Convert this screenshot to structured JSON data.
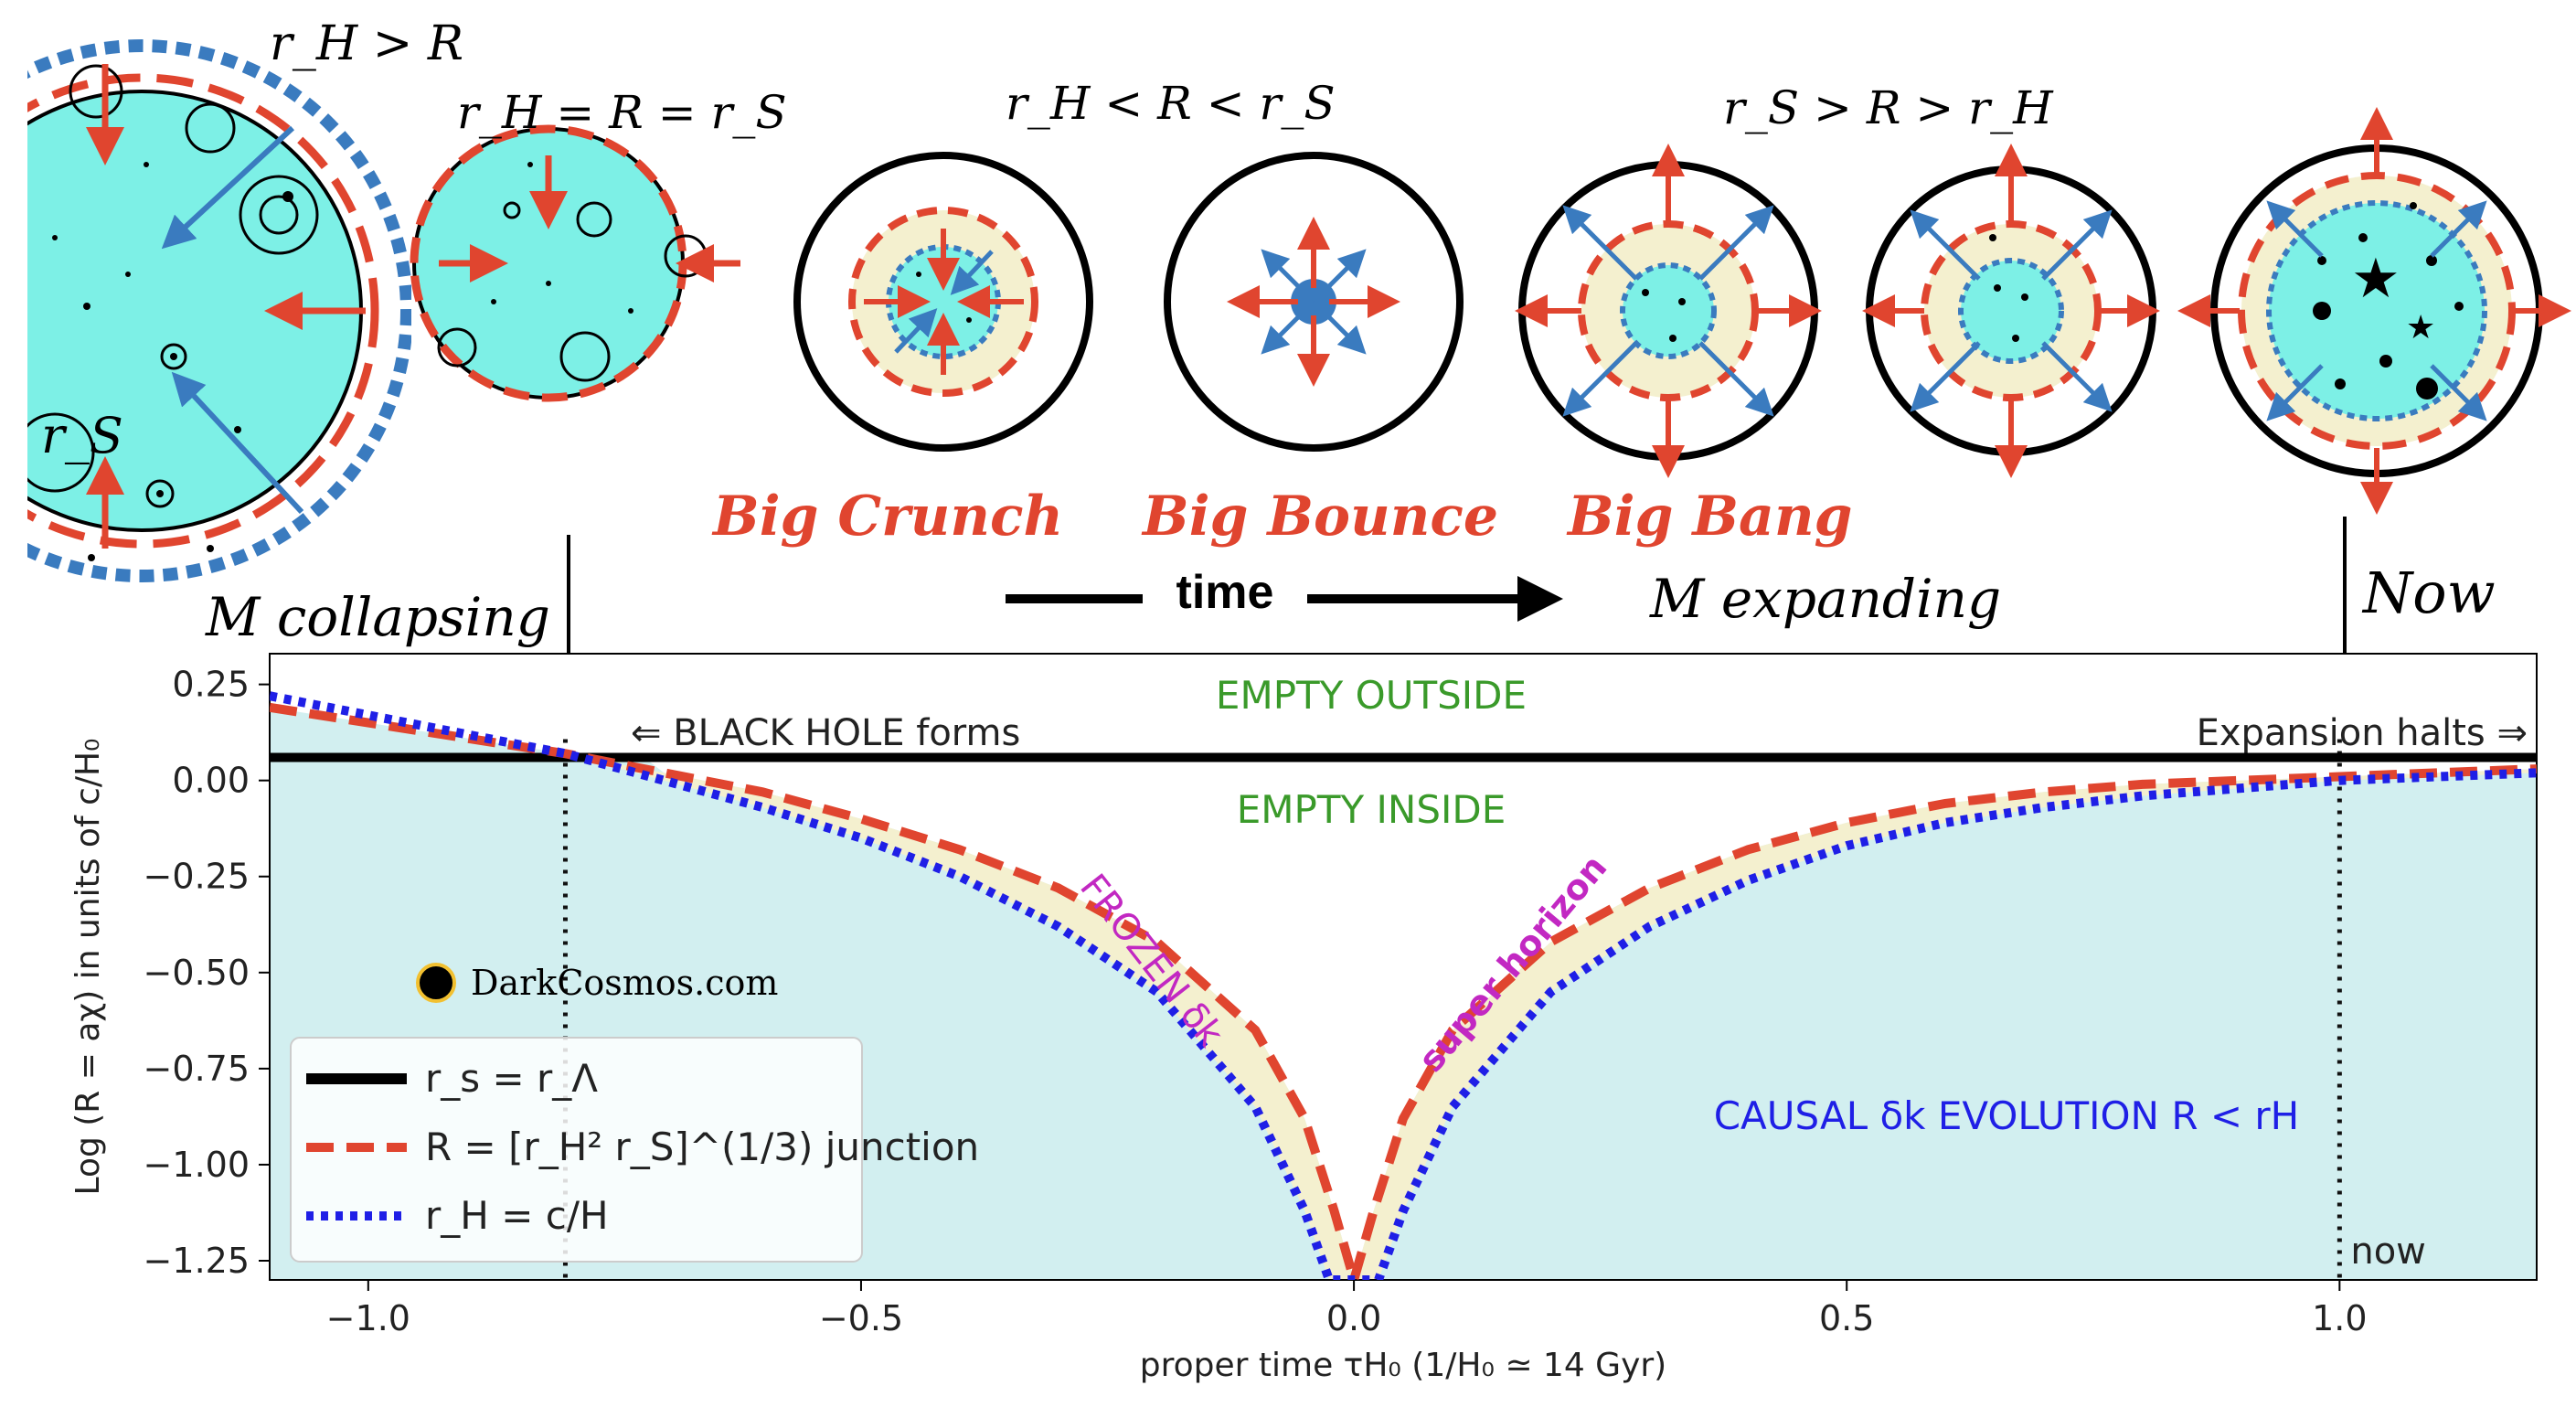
{
  "page": {
    "stage_labels": [
      "r_H > R",
      "r_H = R = r_S",
      "r_H < R < r_S",
      "r_S > R > r_H"
    ],
    "event_labels": [
      "Big Crunch",
      "Big Bounce",
      "Big Bang"
    ],
    "time_label": "time",
    "m_collapsing": "M collapsing",
    "m_expanding": "M expanding",
    "now_label": "Now",
    "rs_label": "r_S",
    "watermark": "DarkCosmos.com"
  },
  "chart_data": {
    "type": "line",
    "xlabel": "proper time τH₀ (1/H₀ ≃ 14 Gyr)",
    "ylabel": "Log (R = aχ) in units of c/H₀",
    "xlim": [
      -1.1,
      1.2
    ],
    "ylim": [
      -1.3,
      0.33
    ],
    "xticks": [
      -1.0,
      -0.5,
      0.0,
      0.5,
      1.0
    ],
    "xtick_labels": [
      "−1.0",
      "−0.5",
      "0.0",
      "0.5",
      "1.0"
    ],
    "yticks": [
      0.25,
      0.0,
      -0.25,
      -0.5,
      -0.75,
      -1.0,
      -1.25
    ],
    "ytick_labels": [
      "0.25",
      "0.00",
      "−0.25",
      "−0.50",
      "−0.75",
      "−1.00",
      "−1.25"
    ],
    "grid": false,
    "legend_placement": "lower-left",
    "series": [
      {
        "name": "r_s = r_Λ",
        "style": "solid",
        "color": "#000000",
        "x": [
          -1.1,
          1.2
        ],
        "y": [
          0.06,
          0.06
        ]
      },
      {
        "name": "R = [r_H² r_S]^(1/3) junction",
        "style": "dashed",
        "color": "#e0452f",
        "x": [
          -1.1,
          -1.0,
          -0.9,
          -0.8,
          -0.7,
          -0.6,
          -0.5,
          -0.4,
          -0.3,
          -0.2,
          -0.1,
          -0.05,
          -0.02,
          0.0,
          0.02,
          0.05,
          0.1,
          0.2,
          0.3,
          0.4,
          0.5,
          0.6,
          0.7,
          0.8,
          0.9,
          1.0,
          1.1,
          1.2
        ],
        "y": [
          0.19,
          0.15,
          0.11,
          0.07,
          0.02,
          -0.03,
          -0.1,
          -0.18,
          -0.28,
          -0.42,
          -0.65,
          -0.88,
          -1.12,
          -1.3,
          -1.12,
          -0.88,
          -0.65,
          -0.42,
          -0.28,
          -0.18,
          -0.11,
          -0.06,
          -0.03,
          -0.01,
          0.0,
          0.01,
          0.02,
          0.03
        ]
      },
      {
        "name": "r_H = c/H",
        "style": "dotted",
        "color": "#1f1fe6",
        "x": [
          -1.1,
          -1.0,
          -0.9,
          -0.8,
          -0.7,
          -0.6,
          -0.5,
          -0.4,
          -0.3,
          -0.2,
          -0.1,
          -0.05,
          -0.025,
          0.0,
          0.025,
          0.05,
          0.1,
          0.2,
          0.3,
          0.4,
          0.5,
          0.6,
          0.7,
          0.8,
          0.9,
          1.0,
          1.1,
          1.2
        ],
        "y": [
          0.22,
          0.17,
          0.12,
          0.07,
          0.0,
          -0.07,
          -0.15,
          -0.25,
          -0.38,
          -0.55,
          -0.85,
          -1.12,
          -1.3,
          -1.3,
          -1.3,
          -1.12,
          -0.85,
          -0.55,
          -0.38,
          -0.26,
          -0.17,
          -0.11,
          -0.07,
          -0.04,
          -0.02,
          0.0,
          0.01,
          0.02
        ]
      }
    ],
    "vlines": [
      {
        "x": -0.8
      },
      {
        "x": 1.0,
        "label": "now"
      }
    ],
    "annotations": [
      {
        "text": "EMPTY OUTSIDE",
        "color": "#3a9a2a"
      },
      {
        "text": "EMPTY INSIDE",
        "color": "#3a9a2a"
      },
      {
        "text": "⇐ BLACK HOLE forms",
        "color": "#222222"
      },
      {
        "text": "Expansion halts ⇒",
        "color": "#222222"
      },
      {
        "text": "FROZEN δk",
        "color": "#c228c2"
      },
      {
        "text": "super horizon",
        "color": "#c228c2"
      },
      {
        "text": "CAUSAL δk EVOLUTION R < rH",
        "color": "#1f1fe6"
      }
    ],
    "colors": {
      "teal_region": "#d2eff0",
      "beige_band": "#f4f0cf",
      "cyan_fill": "#7df0e6"
    }
  }
}
